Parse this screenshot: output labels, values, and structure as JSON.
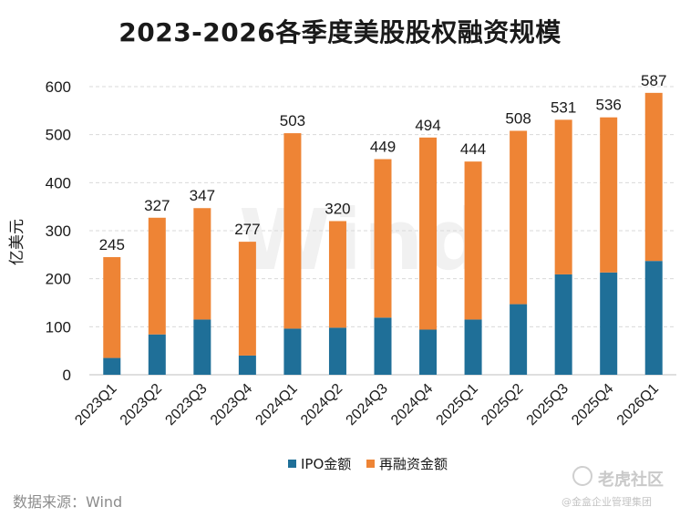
{
  "chart_data": {
    "type": "bar",
    "stacked": true,
    "title": "2023-2026各季度美股股权融资规模",
    "ylabel": "亿美元",
    "xlabel": "",
    "ylim": [
      0,
      600
    ],
    "yticks": [
      0,
      100,
      200,
      300,
      400,
      500,
      600
    ],
    "grid": true,
    "legend_position": "bottom",
    "categories": [
      "2023Q1",
      "2023Q2",
      "2023Q3",
      "2023Q4",
      "2024Q1",
      "2024Q2",
      "2024Q3",
      "2024Q4",
      "2025Q1",
      "2025Q2",
      "2025Q3",
      "2025Q4",
      "2026Q1"
    ],
    "series": [
      {
        "name": "IPO金额",
        "color": "#1f6f98",
        "values": [
          35,
          84,
          115,
          40,
          96,
          98,
          119,
          94,
          115,
          147,
          209,
          213,
          237
        ]
      },
      {
        "name": "再融资金额",
        "color": "#ee8435",
        "values": [
          210,
          243,
          232,
          237,
          407,
          222,
          330,
          400,
          329,
          361,
          322,
          323,
          350
        ]
      }
    ],
    "totals": [
      245,
      327,
      347,
      277,
      503,
      320,
      449,
      494,
      444,
      508,
      531,
      536,
      587
    ]
  },
  "source": "数据来源：Wind",
  "watermark": {
    "chart": "Wind",
    "brand": "老虎社区",
    "sub": "@金盒企业管理集团"
  }
}
